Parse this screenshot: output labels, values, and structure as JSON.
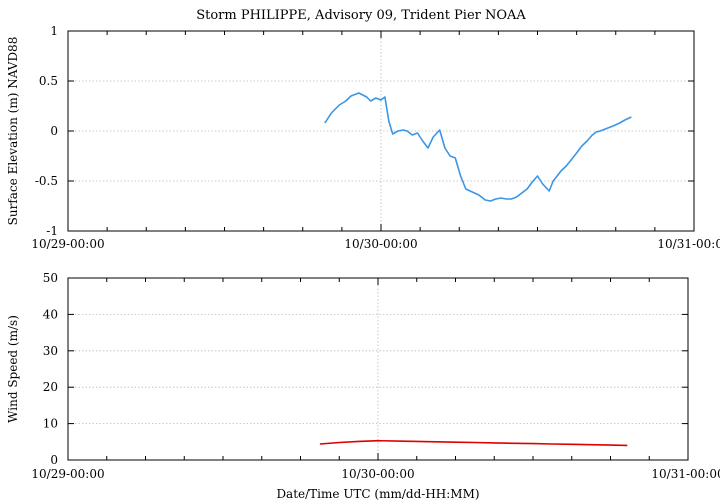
{
  "figure": {
    "title": "Storm PHILIPPE, Advisory 09,  Trident Pier NOAA",
    "xlabel": "Date/Time UTC (mm/dd-HH:MM)"
  },
  "chart_data": [
    {
      "type": "line",
      "ylabel": "Surface Elevation (m) NAVD88",
      "x_ticks": [
        "10/29-00:00",
        "10/30-00:00",
        "10/31-00:00"
      ],
      "xlim_hours": [
        0,
        48
      ],
      "ylim": [
        -1,
        1
      ],
      "y_ticks": [
        "1",
        "0.5",
        "0",
        "-0.5",
        "-1"
      ],
      "y_tick_values": [
        1,
        0.5,
        0,
        -0.5,
        -1
      ],
      "grid": true,
      "colors": {
        "line": "#3a96e6"
      },
      "series": [
        {
          "x_hours": [
            19.7,
            20.2,
            20.8,
            21.3,
            21.7,
            22.3,
            22.9,
            23.2,
            23.6,
            24.0,
            24.3,
            24.6,
            24.9,
            25.3,
            25.7,
            26.0,
            26.4,
            26.8,
            27.2,
            27.6,
            28.0,
            28.5,
            28.9,
            29.3,
            29.7,
            30.1,
            30.5,
            31.0,
            31.5,
            32.0,
            32.4,
            32.8,
            33.2,
            33.6,
            34.0,
            34.4,
            34.8,
            35.2,
            35.6,
            36.0,
            36.4,
            36.9,
            37.2,
            37.8,
            38.2,
            38.7,
            39.0,
            39.4,
            39.8,
            40.2,
            40.5,
            40.8,
            41.2,
            41.8,
            42.3,
            42.7,
            43.2
          ],
          "values": [
            0.08,
            0.18,
            0.26,
            0.3,
            0.35,
            0.38,
            0.34,
            0.3,
            0.33,
            0.31,
            0.34,
            0.1,
            -0.03,
            0.0,
            0.01,
            0.0,
            -0.04,
            -0.02,
            -0.1,
            -0.17,
            -0.06,
            0.01,
            -0.17,
            -0.25,
            -0.27,
            -0.45,
            -0.58,
            -0.61,
            -0.64,
            -0.69,
            -0.7,
            -0.68,
            -0.67,
            -0.68,
            -0.68,
            -0.66,
            -0.62,
            -0.58,
            -0.51,
            -0.45,
            -0.53,
            -0.6,
            -0.5,
            -0.4,
            -0.35,
            -0.27,
            -0.22,
            -0.15,
            -0.1,
            -0.04,
            -0.01,
            0.0,
            0.02,
            0.05,
            0.08,
            0.11,
            0.14
          ]
        }
      ]
    },
    {
      "type": "line",
      "ylabel": "Wind Speed (m/s)",
      "x_ticks": [
        "10/29-00:00",
        "10/30-00:00",
        "10/31-00:00"
      ],
      "xlim_hours": [
        0,
        48
      ],
      "ylim": [
        0,
        50
      ],
      "y_ticks": [
        "50",
        "40",
        "30",
        "20",
        "10",
        "0"
      ],
      "y_tick_values": [
        50,
        40,
        30,
        20,
        10,
        0
      ],
      "grid": true,
      "colors": {
        "line": "#dd0000"
      },
      "series": [
        {
          "x_hours": [
            19.5,
            21.0,
            22.5,
            24.0,
            25.5,
            27.0,
            28.5,
            30.0,
            31.5,
            33.0,
            34.5,
            36.0,
            37.5,
            39.0,
            40.5,
            42.0,
            43.3
          ],
          "values": [
            4.4,
            4.8,
            5.1,
            5.3,
            5.2,
            5.1,
            5.0,
            4.9,
            4.8,
            4.7,
            4.6,
            4.5,
            4.4,
            4.3,
            4.2,
            4.1,
            4.0
          ]
        }
      ]
    }
  ]
}
